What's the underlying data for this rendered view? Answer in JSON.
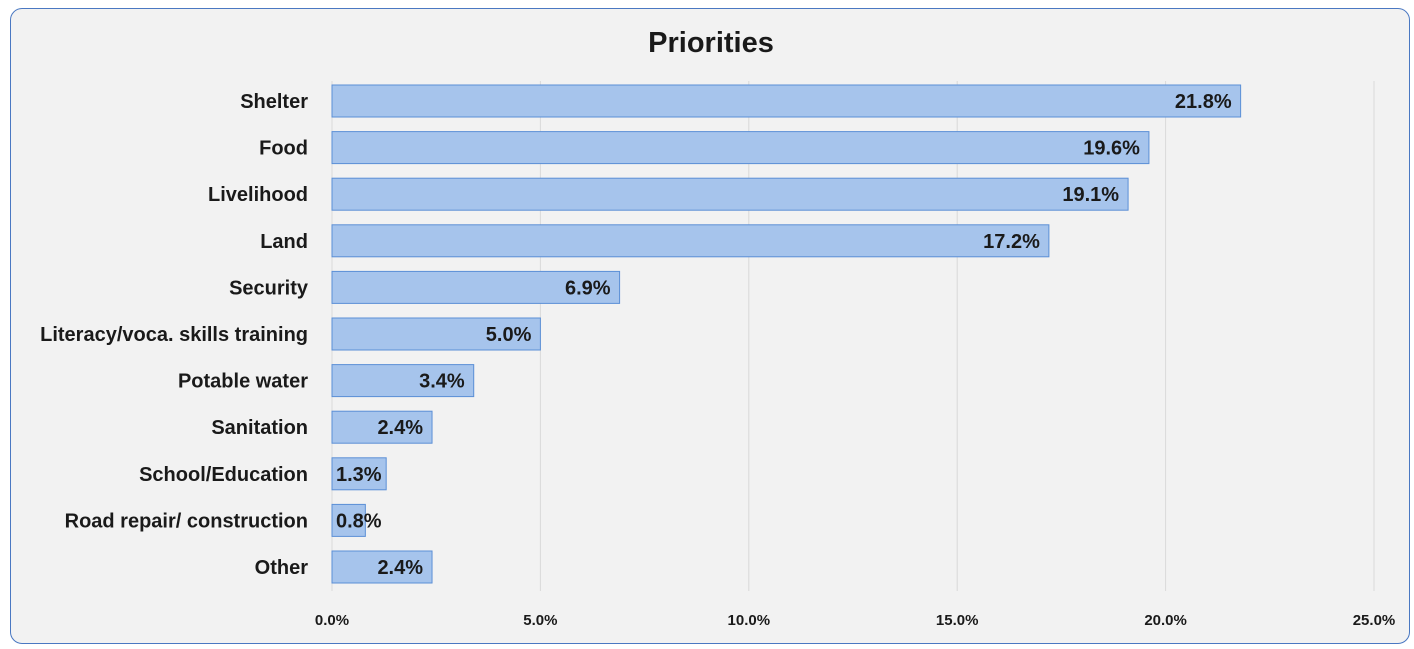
{
  "chart_data": {
    "type": "bar",
    "orientation": "horizontal",
    "title": "Priorities",
    "xlabel": "",
    "ylabel": "",
    "categories": [
      "Shelter",
      "Food",
      "Livelihood",
      "Land",
      "Security",
      "Literacy/voca. skills training",
      "Potable water",
      "Sanitation",
      "School/Education",
      "Road repair/ construction",
      "Other"
    ],
    "values": [
      21.8,
      19.6,
      19.1,
      17.2,
      6.9,
      5.0,
      3.4,
      2.4,
      1.3,
      0.8,
      2.4
    ],
    "value_labels": [
      "21.8%",
      "19.6%",
      "19.1%",
      "17.2%",
      "6.9%",
      "5.0%",
      "3.4%",
      "2.4%",
      "1.3%",
      "0.8%",
      "2.4%"
    ],
    "xlim": [
      0,
      25
    ],
    "x_ticks": [
      0,
      5,
      10,
      15,
      20,
      25
    ],
    "x_tick_labels": [
      "0.0%",
      "5.0%",
      "10.0%",
      "15.0%",
      "20.0%",
      "25.0%"
    ],
    "grid": "vertical",
    "legend": "none",
    "colors": {
      "bar_fill": "#a6c4ec",
      "bar_stroke": "#5b8fd6",
      "grid": "#d9d9d9",
      "background": "#f2f2f2",
      "border": "#4a78c2"
    }
  }
}
